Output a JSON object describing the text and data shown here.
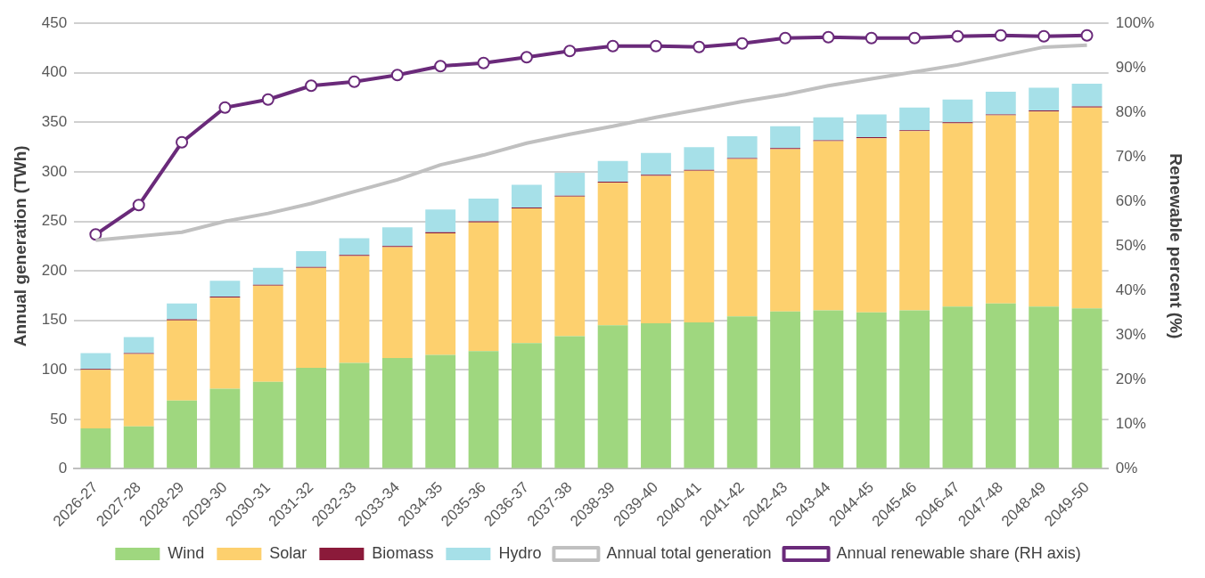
{
  "chart_data": {
    "type": "bar",
    "stacked": true,
    "ylabel": "Annual generation (TWh)",
    "y2label": "Renewable percent (%)",
    "categories": [
      "2026-27",
      "2027-28",
      "2028-29",
      "2029-30",
      "2030-31",
      "2031-32",
      "2032-33",
      "2033-34",
      "2034-35",
      "2035-36",
      "2036-37",
      "2037-38",
      "2038-39",
      "2039-40",
      "2040-41",
      "2041-42",
      "2042-43",
      "2043-44",
      "2044-45",
      "2045-46",
      "2046-47",
      "2047-48",
      "2048-49",
      "2049-50"
    ],
    "series": [
      {
        "name": "Wind",
        "color": "#9fd77f",
        "values": [
          41,
          43,
          69,
          81,
          88,
          102,
          107,
          112,
          115,
          119,
          127,
          134,
          145,
          147,
          148,
          154,
          159,
          160,
          158,
          160,
          164,
          167,
          164,
          162
        ]
      },
      {
        "name": "Solar",
        "color": "#fdd06e",
        "values": [
          59,
          73,
          81,
          92,
          97,
          101,
          108,
          112,
          123,
          130,
          136,
          141,
          144,
          149,
          153,
          159,
          164,
          171,
          176,
          181,
          185,
          190,
          197,
          203
        ]
      },
      {
        "name": "Biomass",
        "color": "#8b1a3a",
        "values": [
          1,
          1,
          1,
          1,
          1,
          1,
          1,
          1,
          1,
          1,
          1,
          1,
          1,
          1,
          1,
          1,
          1,
          1,
          1,
          1,
          1,
          1,
          1,
          1
        ]
      },
      {
        "name": "Hydro",
        "color": "#a6e0e8",
        "values": [
          16,
          16,
          16,
          16,
          17,
          16,
          17,
          19,
          23,
          23,
          23,
          23,
          21,
          22,
          23,
          22,
          22,
          23,
          23,
          23,
          23,
          23,
          23,
          23
        ]
      },
      {
        "name": "Annual total generation",
        "type": "line",
        "color": "#c0c0c0",
        "marker": "none",
        "values": [
          231,
          235,
          239,
          250,
          258,
          268,
          280,
          292,
          307,
          317,
          329,
          338,
          346,
          355,
          363,
          371,
          378,
          387,
          394,
          401,
          408,
          417,
          426,
          428
        ]
      },
      {
        "name": "Annual renewable share (RH axis)",
        "type": "line",
        "axis": "y2",
        "color": "#6a2a7a",
        "marker": "circle",
        "values": [
          52.6,
          59.2,
          73.3,
          81.1,
          82.9,
          86.0,
          86.9,
          88.4,
          90.4,
          91.1,
          92.4,
          93.8,
          94.9,
          94.9,
          94.7,
          95.5,
          96.7,
          96.9,
          96.7,
          96.7,
          97.1,
          97.3,
          97.1,
          97.3
        ]
      }
    ],
    "ylim": [
      0,
      450
    ],
    "yticks": [
      0,
      50,
      100,
      150,
      200,
      250,
      300,
      350,
      400,
      450
    ],
    "y2lim": [
      0,
      100
    ],
    "y2ticks": [
      {
        "value": 0,
        "label": "0%"
      },
      {
        "value": 10,
        "label": "10%"
      },
      {
        "value": 20,
        "label": "20%"
      },
      {
        "value": 30,
        "label": "30%"
      },
      {
        "value": 40,
        "label": "40%"
      },
      {
        "value": 50,
        "label": "50%"
      },
      {
        "value": 60,
        "label": "60%"
      },
      {
        "value": 70,
        "label": "70%"
      },
      {
        "value": 80,
        "label": "80%"
      },
      {
        "value": 90,
        "label": "90%"
      },
      {
        "value": 100,
        "label": "100%"
      }
    ],
    "grid": "y",
    "legend": "bottom"
  }
}
